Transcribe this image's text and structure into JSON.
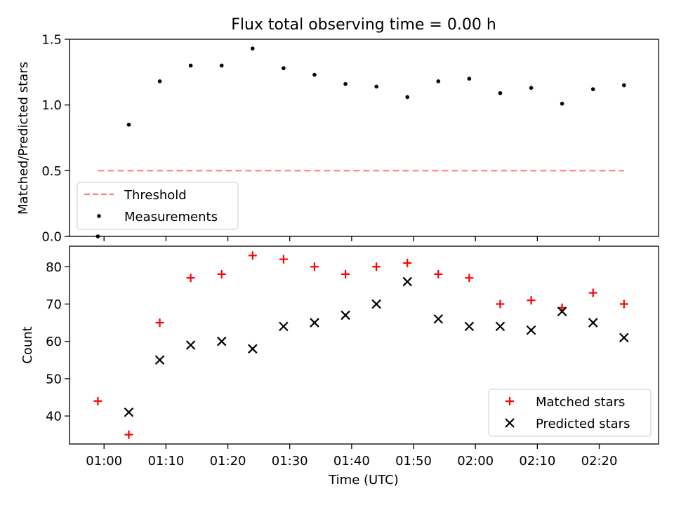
{
  "figure": {
    "title": "Flux total observing time = 0.00 h",
    "xlabel": "Time (UTC)",
    "x_ticks": [
      "01:00",
      "01:10",
      "01:20",
      "01:30",
      "01:40",
      "01:50",
      "02:00",
      "02:10",
      "02:20"
    ]
  },
  "chart_data": [
    {
      "type": "scatter",
      "ylabel": "Matched/Predicted stars",
      "ylim": [
        0,
        1.5
      ],
      "y_ticks": [
        "0.0",
        "0.5",
        "1.0",
        "1.5"
      ],
      "xlim": [
        "00:59",
        "02:25"
      ],
      "legend": {
        "placement": "lower-left",
        "entries": [
          "Threshold",
          "Measurements"
        ]
      },
      "series": [
        {
          "name": "Threshold",
          "kind": "line",
          "style": "dashed",
          "color": "#ff7f7f",
          "x": [
            "00:59",
            "02:24"
          ],
          "y": [
            0.5,
            0.5
          ]
        },
        {
          "name": "Measurements",
          "kind": "points",
          "color": "#000000",
          "x": [
            "00:59",
            "01:04",
            "01:09",
            "01:14",
            "01:19",
            "01:24",
            "01:29",
            "01:34",
            "01:39",
            "01:44",
            "01:49",
            "01:54",
            "01:59",
            "02:04",
            "02:09",
            "02:14",
            "02:19",
            "02:24"
          ],
          "y": [
            0.0,
            0.85,
            1.18,
            1.3,
            1.3,
            1.43,
            1.28,
            1.23,
            1.16,
            1.14,
            1.06,
            1.18,
            1.2,
            1.09,
            1.13,
            1.01,
            1.12,
            1.15
          ]
        }
      ]
    },
    {
      "type": "scatter",
      "ylabel": "Count",
      "ylim": [
        32.5,
        85.5
      ],
      "y_ticks": [
        "40",
        "50",
        "60",
        "70",
        "80"
      ],
      "xlim": [
        "00:59",
        "02:25"
      ],
      "legend": {
        "placement": "lower-right",
        "entries": [
          "Matched stars",
          "Predicted stars"
        ]
      },
      "series": [
        {
          "name": "Matched stars",
          "marker": "plus",
          "color": "#ff0000",
          "x": [
            "00:59",
            "01:04",
            "01:09",
            "01:14",
            "01:19",
            "01:24",
            "01:29",
            "01:34",
            "01:39",
            "01:44",
            "01:49",
            "01:54",
            "01:59",
            "02:04",
            "02:09",
            "02:14",
            "02:19",
            "02:24"
          ],
          "y": [
            44,
            35,
            65,
            77,
            78,
            83,
            82,
            80,
            78,
            80,
            81,
            78,
            77,
            70,
            71,
            69,
            73,
            70
          ]
        },
        {
          "name": "Predicted stars",
          "marker": "x",
          "color": "#000000",
          "x": [
            "01:04",
            "01:09",
            "01:14",
            "01:19",
            "01:24",
            "01:29",
            "01:34",
            "01:39",
            "01:44",
            "01:49",
            "01:54",
            "01:59",
            "02:04",
            "02:09",
            "02:14",
            "02:19",
            "02:24"
          ],
          "y": [
            41,
            55,
            59,
            60,
            58,
            64,
            65,
            67,
            70,
            76,
            66,
            64,
            64,
            63,
            68,
            65,
            61
          ]
        }
      ]
    }
  ]
}
